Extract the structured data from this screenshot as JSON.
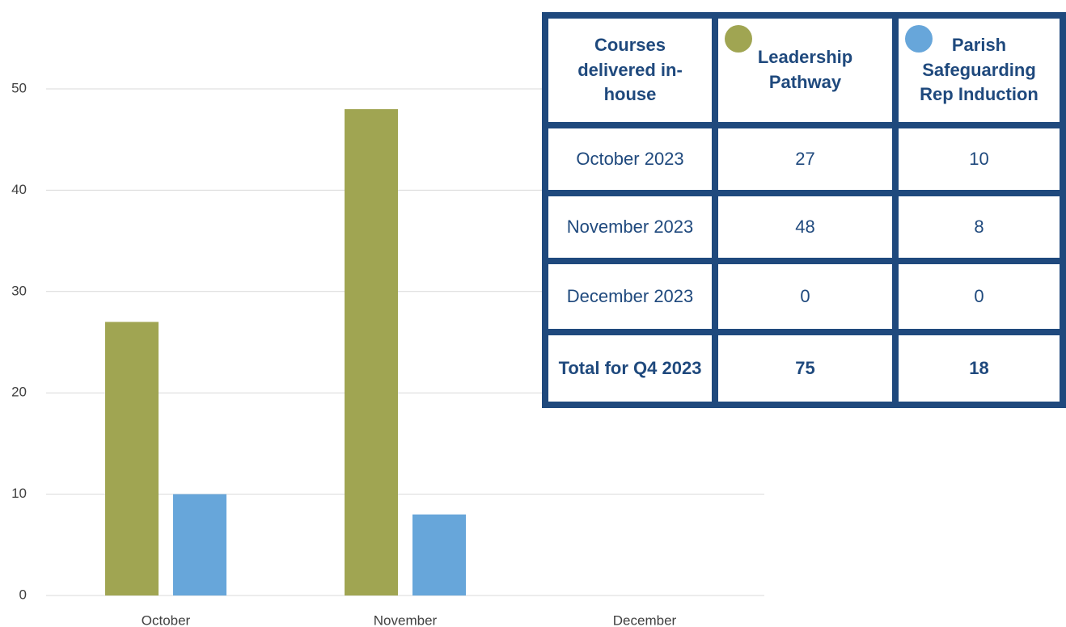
{
  "chart_data": {
    "type": "bar",
    "categories": [
      "October",
      "November",
      "December"
    ],
    "series": [
      {
        "name": "Leadership Pathway",
        "color": "#a0a552",
        "values": [
          27,
          48,
          0
        ]
      },
      {
        "name": "Parish Safeguarding Rep Induction",
        "color": "#67a6da",
        "values": [
          10,
          8,
          0
        ]
      }
    ],
    "ylim": [
      0,
      50
    ],
    "yticks": [
      0,
      10,
      20,
      30,
      40,
      50
    ],
    "grid": true
  },
  "table": {
    "header": [
      "Courses delivered in-house"
    ],
    "rows": [
      [
        "October 2023",
        "27",
        "10"
      ],
      [
        "November 2023",
        "48",
        "8"
      ],
      [
        "December 2023",
        "0",
        "0"
      ],
      [
        "Total for Q4 2023",
        "75",
        "18"
      ]
    ]
  }
}
